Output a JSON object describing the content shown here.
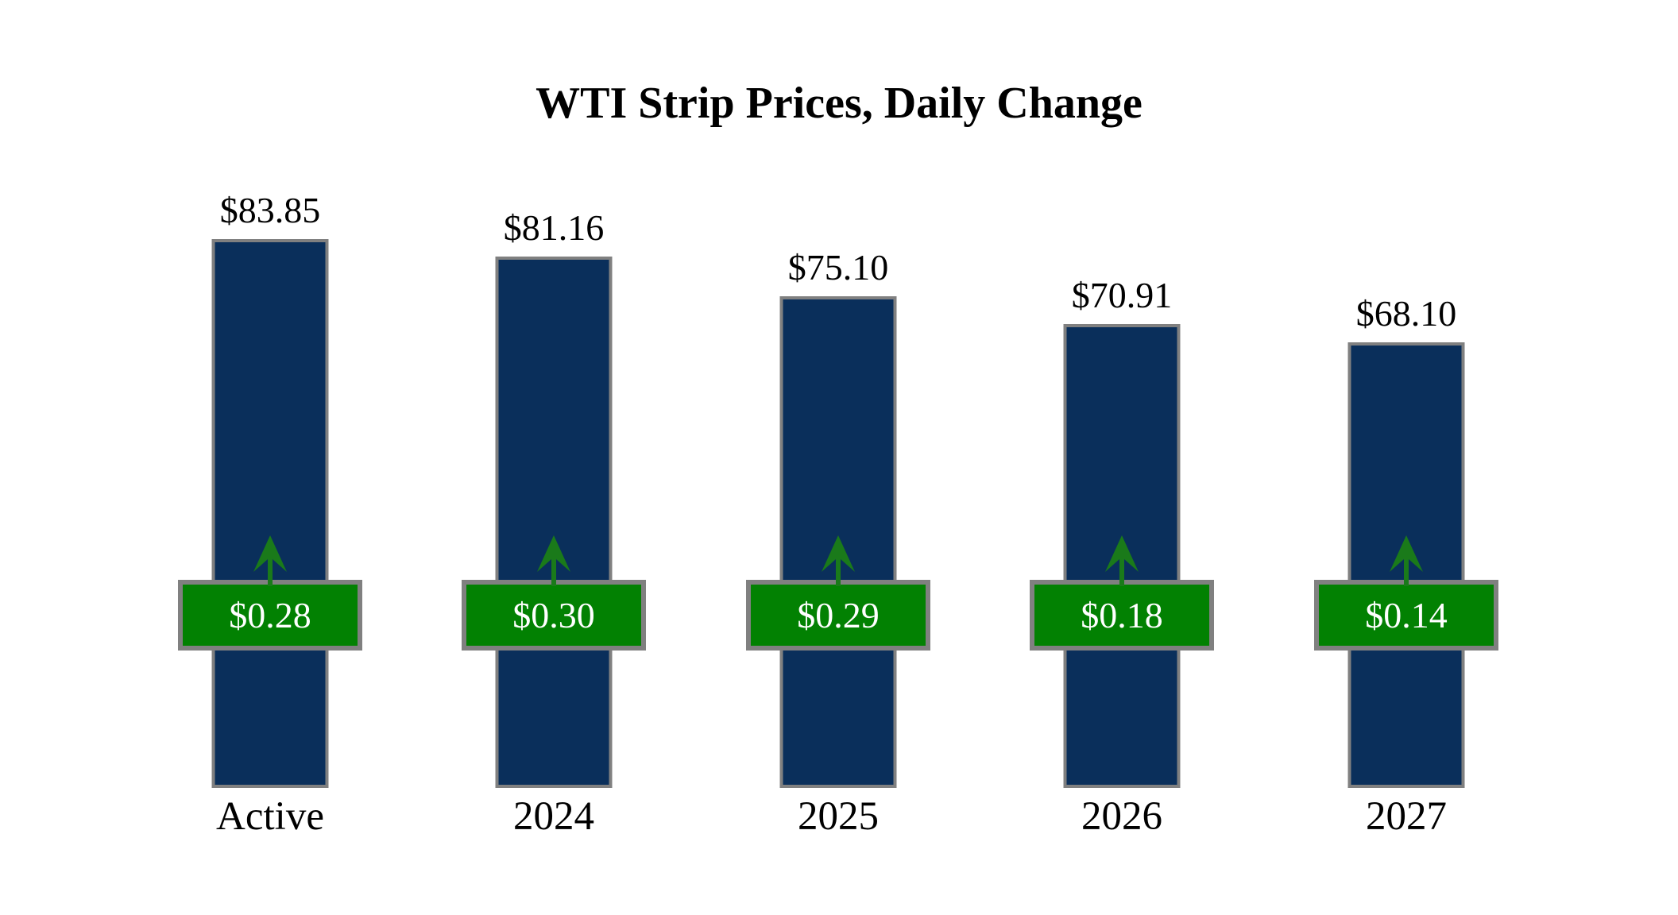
{
  "title": "WTI Strip Prices, Daily Change",
  "chart_data": {
    "type": "bar",
    "title": "WTI Strip Prices, Daily Change",
    "categories": [
      "Active",
      "2024",
      "2025",
      "2026",
      "2027"
    ],
    "values": [
      83.85,
      81.16,
      75.1,
      70.91,
      68.1
    ],
    "series": [
      {
        "name": "strip_price",
        "values": [
          83.85,
          81.16,
          75.1,
          70.91,
          68.1
        ]
      },
      {
        "name": "daily_change",
        "values": [
          0.28,
          0.3,
          0.29,
          0.18,
          0.14
        ]
      }
    ],
    "bars": [
      {
        "category": "Active",
        "price": "$83.85",
        "change": "$0.28",
        "direction": "up"
      },
      {
        "category": "2024",
        "price": "$81.16",
        "change": "$0.30",
        "direction": "up"
      },
      {
        "category": "2025",
        "price": "$75.10",
        "change": "$0.29",
        "direction": "up"
      },
      {
        "category": "2026",
        "price": "$70.91",
        "change": "$0.18",
        "direction": "up"
      },
      {
        "category": "2027",
        "price": "$68.10",
        "change": "$0.14",
        "direction": "up"
      }
    ],
    "xlabel": "",
    "ylabel": "",
    "ylim": [
      0,
      90
    ],
    "grid": false,
    "legend": "none",
    "annotations": "green boxes show daily change with up arrows"
  },
  "colors": {
    "background": "#ffffff",
    "bar": "#0A2F5B",
    "change_box": "#028102",
    "arrow": "#1A7A1A",
    "border": "#808080",
    "box_text": "#ffffff",
    "text": "#000000"
  }
}
